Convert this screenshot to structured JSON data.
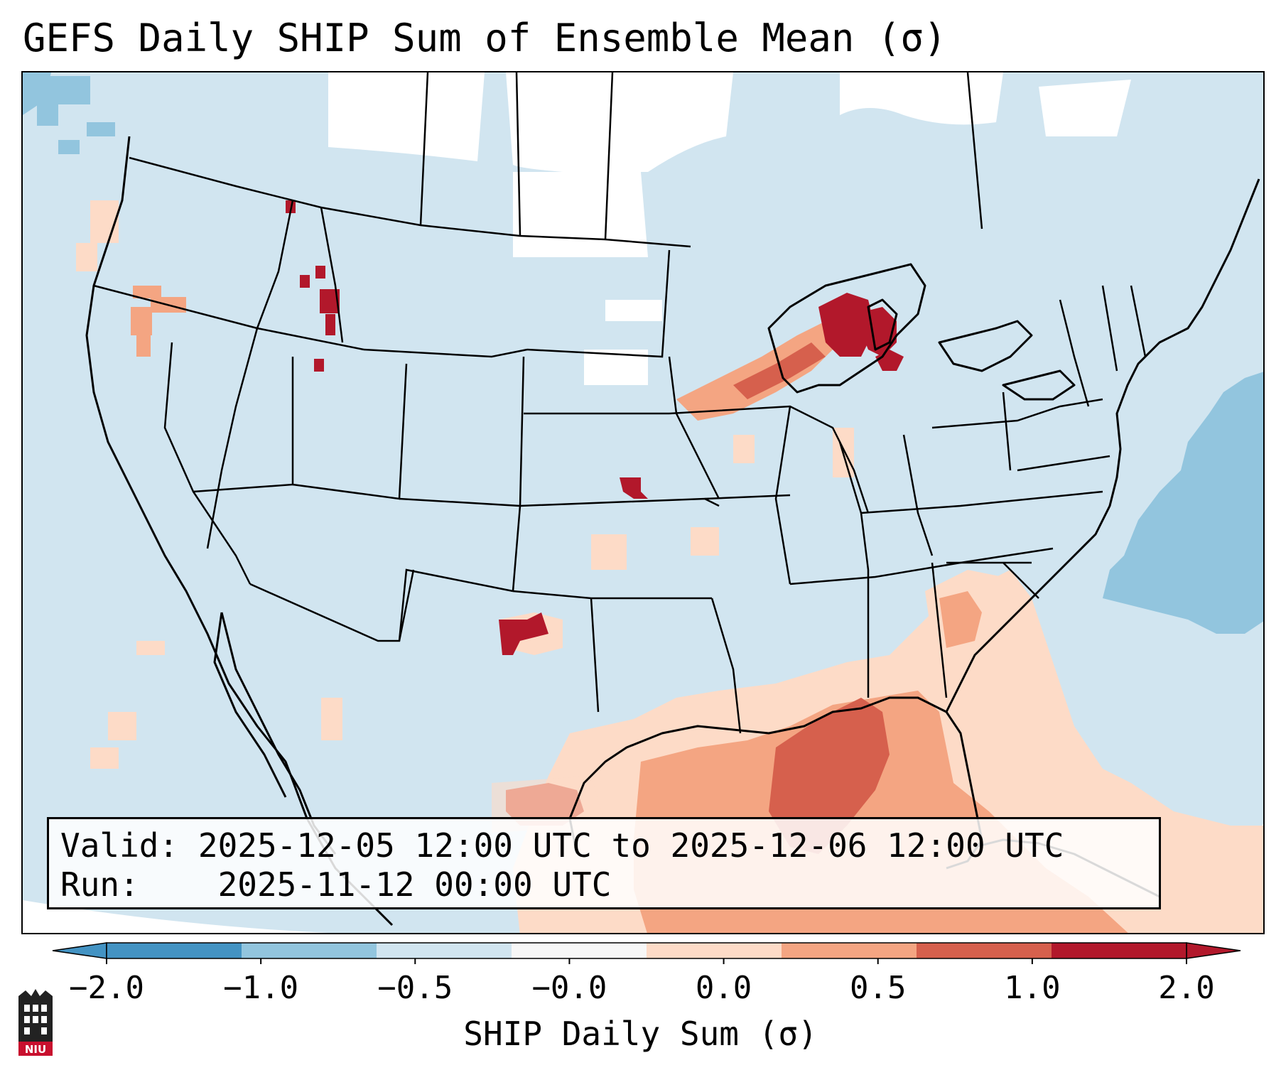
{
  "title": "GEFS Daily SHIP Sum of Ensemble Mean (σ)",
  "info": {
    "valid_prefix": "Valid:",
    "valid_value": "2025-12-05 12:00 UTC to 2025-12-06 12:00 UTC",
    "run_prefix": "Run:",
    "run_value": "2025-11-12 00:00 UTC"
  },
  "colorbar": {
    "label": "SHIP Daily Sum (σ)",
    "ticks": [
      "−2.0",
      "−1.0",
      "−0.5",
      "−0.0",
      "0.0",
      "0.5",
      "1.0",
      "2.0"
    ],
    "colors": [
      "#4393c3",
      "#92c5de",
      "#d1e5f0",
      "#f7f7f7",
      "#fddbc7",
      "#f4a582",
      "#d6604d",
      "#b2182b"
    ],
    "extend": "both"
  },
  "map": {
    "background_fill": "#d1e5f0",
    "region": "Continental United States",
    "notable_areas": [
      "Gulf of Mexico positive anomaly",
      "Western Atlantic negative anomaly",
      "Great Lakes / Upper Midwest positive anomaly",
      "Southern Plains positive anomaly"
    ]
  },
  "logo": {
    "text": "NIU",
    "color": "#c8102e"
  }
}
